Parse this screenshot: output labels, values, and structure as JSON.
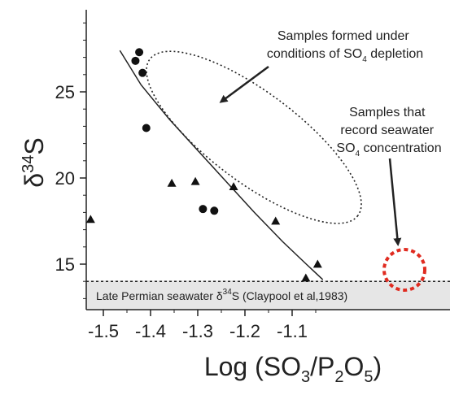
{
  "chart_data": {
    "type": "scatter",
    "title": "",
    "xlabel": {
      "main": "Log (SO",
      "sub1": "3",
      "mid": "/P",
      "sub2": "2",
      "mid2": "O",
      "sub3": "5",
      "end": ")"
    },
    "ylabel": {
      "delta": "δ",
      "sup": "34",
      "letter": "S"
    },
    "xlim": [
      -1.55,
      -1.02
    ],
    "ylim": [
      12.2,
      29.2
    ],
    "x_ticks": [
      -1.5,
      -1.4,
      -1.3,
      -1.2,
      -1.1
    ],
    "x_tick_labels": [
      "-1.5",
      "-1.4",
      "-1.3",
      "-1.2",
      "-1.1"
    ],
    "y_ticks": [
      15,
      20,
      25
    ],
    "y_tick_labels": [
      "15",
      "20",
      "25"
    ],
    "grid": false,
    "series": [
      {
        "marker": "circle",
        "points": [
          {
            "x": -1.432,
            "y": 26.8
          },
          {
            "x": -1.424,
            "y": 27.3
          },
          {
            "x": -1.417,
            "y": 26.1
          },
          {
            "x": -1.409,
            "y": 22.9
          },
          {
            "x": -1.289,
            "y": 18.2
          },
          {
            "x": -1.265,
            "y": 18.1
          }
        ]
      },
      {
        "marker": "triangle",
        "points": [
          {
            "x": -1.527,
            "y": 17.6
          },
          {
            "x": -1.355,
            "y": 19.7
          },
          {
            "x": -1.305,
            "y": 19.8
          },
          {
            "x": -1.224,
            "y": 19.5
          },
          {
            "x": -1.135,
            "y": 17.5
          },
          {
            "x": -1.071,
            "y": 14.2
          },
          {
            "x": -1.046,
            "y": 15.0
          }
        ]
      }
    ],
    "trend_line": {
      "x": [
        -1.465,
        -1.42,
        -1.36,
        -1.3,
        -1.24,
        -1.18,
        -1.12,
        -1.07,
        -1.035
      ],
      "y": [
        27.4,
        25.4,
        23.4,
        21.6,
        19.8,
        18.0,
        16.3,
        15.0,
        14.1
      ]
    },
    "reference_line": {
      "y": 14.0,
      "label": {
        "pre": "Late Permian seawater δ",
        "sup": "34",
        "post": "S (Claypool et al,1983)"
      },
      "band_color": "#e6e6e6"
    },
    "annotations": [
      {
        "lines": [
          "Samples formed under",
          "conditions of SO"
        ],
        "sub": "4",
        "tail": " depletion"
      },
      {
        "lines": [
          "Samples that",
          "record seawater",
          "SO"
        ],
        "sub": "4",
        "tail": " concentration"
      }
    ],
    "colors": {
      "axis": "#222222",
      "markers": "#111111",
      "highlight_circle": "#e02b20"
    }
  }
}
